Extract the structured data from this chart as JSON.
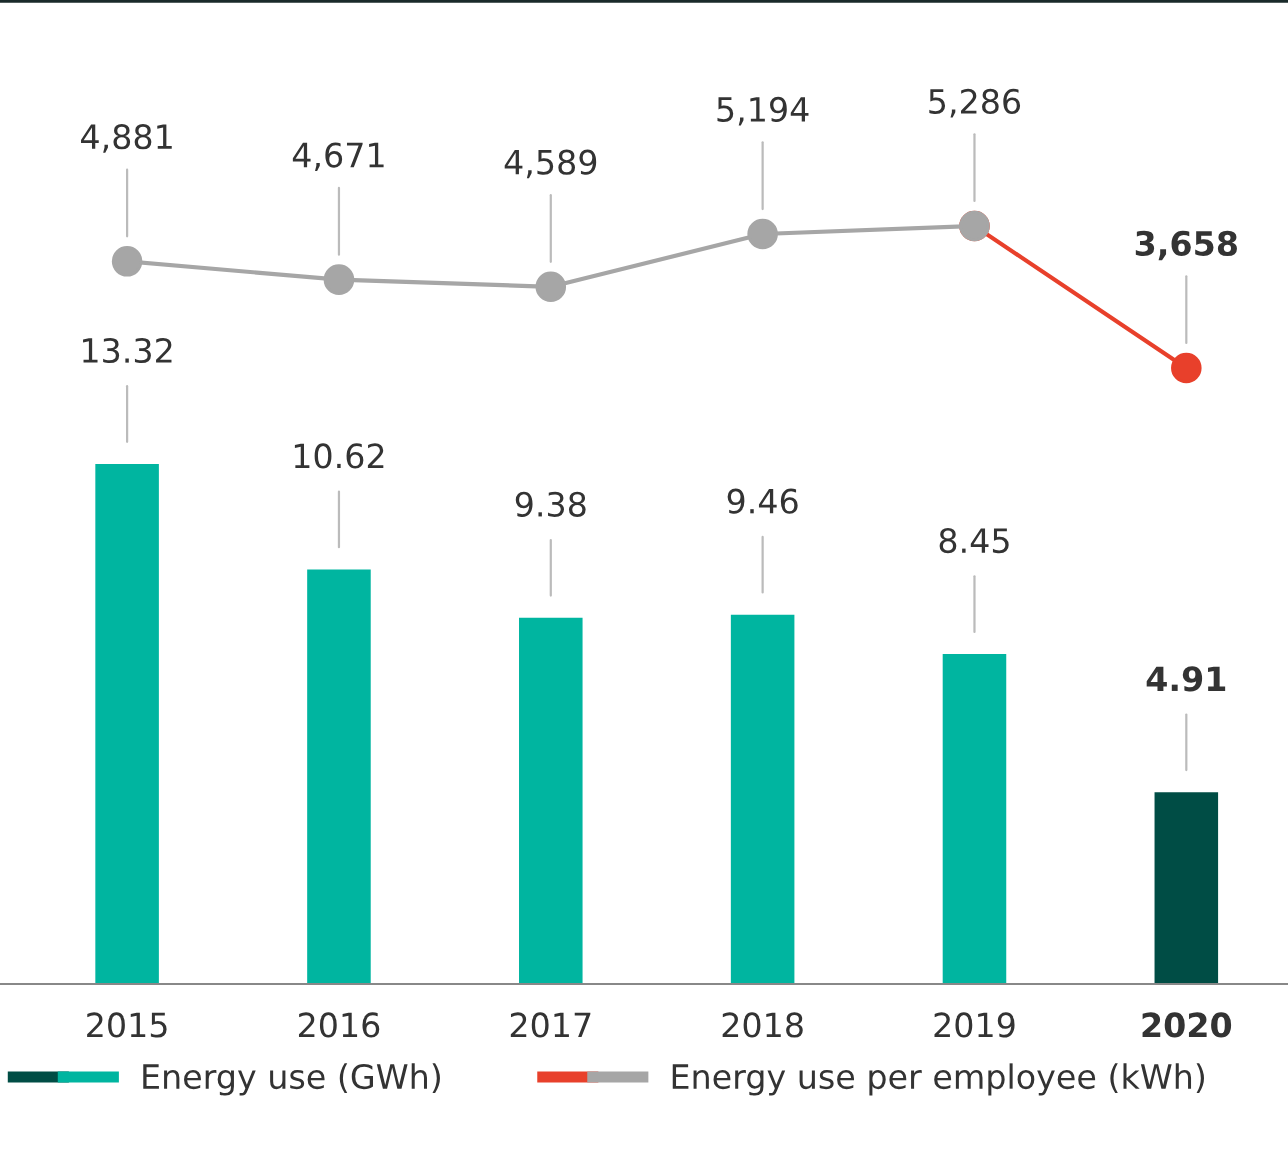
{
  "chart_data": [
    {
      "type": "line",
      "categories": [
        "2015",
        "2016",
        "2017",
        "2018",
        "2019",
        "2020"
      ],
      "tick_labels": false,
      "data_labels": true,
      "grid": false,
      "legend": "bottom",
      "series": [
        {
          "type": "line",
          "marker": "circle",
          "color": "#e8402b",
          "value_labels": [
            null,
            null,
            null,
            null,
            null,
            "3,658"
          ],
          "values": [
            null,
            null,
            null,
            null,
            5286,
            3658
          ]
        },
        {
          "name": "Energy use per employee (kWh)",
          "type": "line",
          "marker": "circle",
          "color": "#a6a6a6",
          "value_labels": [
            "4,881",
            "4,671",
            "4,589",
            "5,194",
            "5,286",
            null
          ],
          "values": [
            4881,
            4671,
            4589,
            5194,
            5286,
            null
          ]
        }
      ]
    },
    {
      "type": "bar",
      "categories": [
        "2015",
        "2016",
        "2017",
        "2018",
        "2019",
        "2020"
      ],
      "tick_labels": "x",
      "data_labels": true,
      "grid": false,
      "legend": "bottom",
      "series": [
        {
          "name": "Energy use (GWh)",
          "type": "bar",
          "colors": [
            "#00b5a0",
            "#00b5a0",
            "#00b5a0",
            "#00b5a0",
            "#00b5a0",
            "#004d45"
          ],
          "values": [
            13.32,
            10.62,
            9.38,
            9.46,
            8.45,
            4.91
          ]
        }
      ]
    }
  ]
}
